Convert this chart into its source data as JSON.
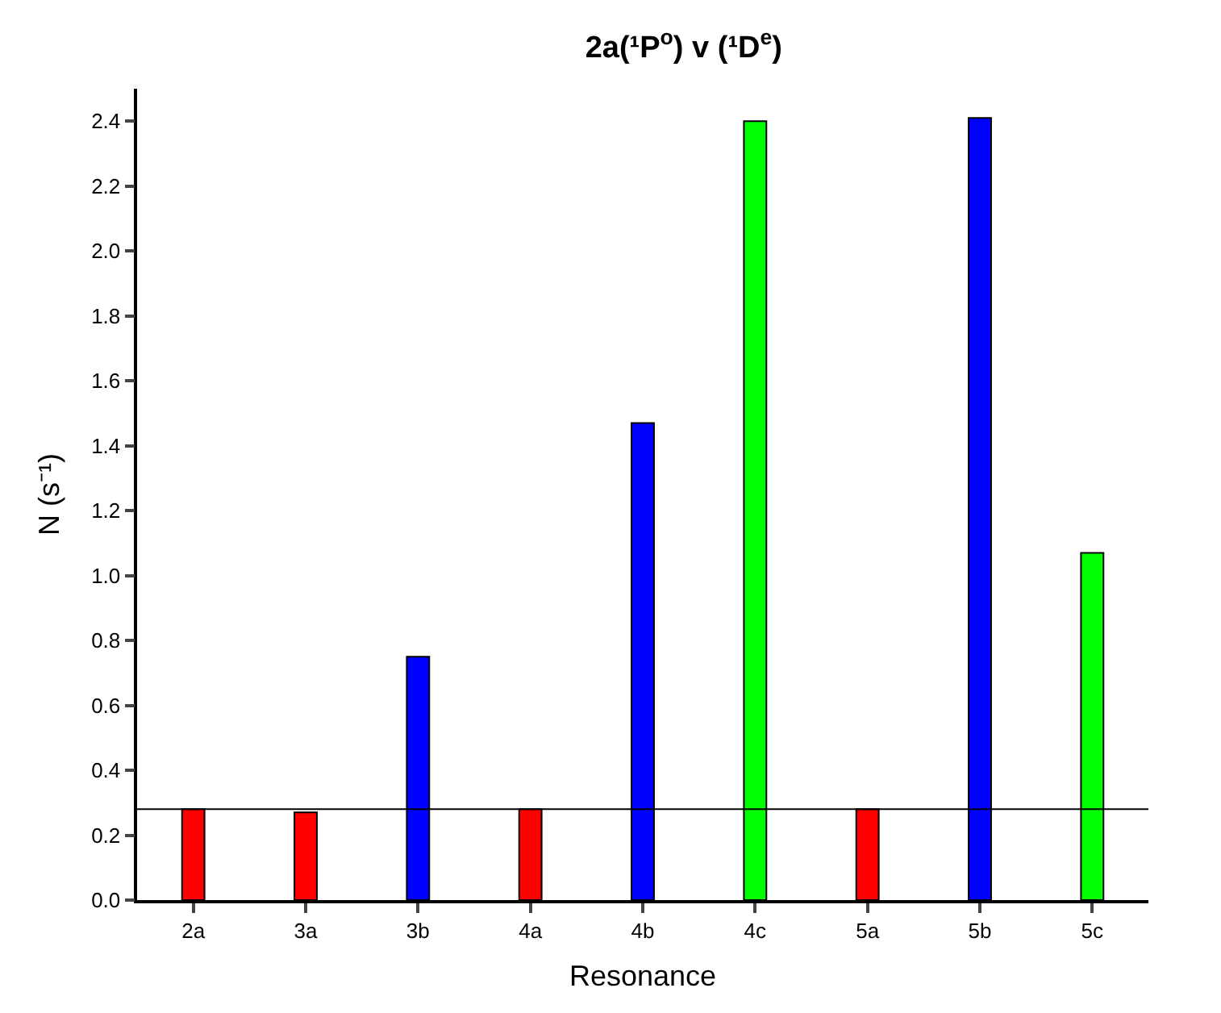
{
  "chart_data": {
    "type": "bar",
    "title": "2a(¹P$^{o}$) v (¹D$^{e}$)",
    "xlabel": "Resonance",
    "ylabel": "N (s⁻¹)",
    "categories": [
      "2a",
      "3a",
      "3b",
      "4a",
      "4b",
      "4c",
      "5a",
      "5b",
      "5c"
    ],
    "values": [
      0.28,
      0.27,
      0.75,
      0.28,
      1.47,
      2.4,
      0.28,
      2.41,
      1.07
    ],
    "colors": [
      "#ff0000",
      "#ff0000",
      "#0000ff",
      "#ff0000",
      "#0000ff",
      "#00ff00",
      "#ff0000",
      "#0000ff",
      "#00ff00"
    ],
    "ylim": [
      0,
      2.5
    ],
    "yticks": [
      {
        "value": 0,
        "label": "0.0"
      },
      0.2,
      0.4,
      0.6,
      0.8,
      {
        "value": 1,
        "label": "1.0"
      },
      1.2,
      1.4,
      1.6,
      1.8,
      {
        "value": 2,
        "label": "2.0"
      },
      2.2,
      2.4
    ],
    "ref_lines": [
      {
        "axis": "y",
        "value": 0.28,
        "color": "#000000"
      }
    ]
  }
}
